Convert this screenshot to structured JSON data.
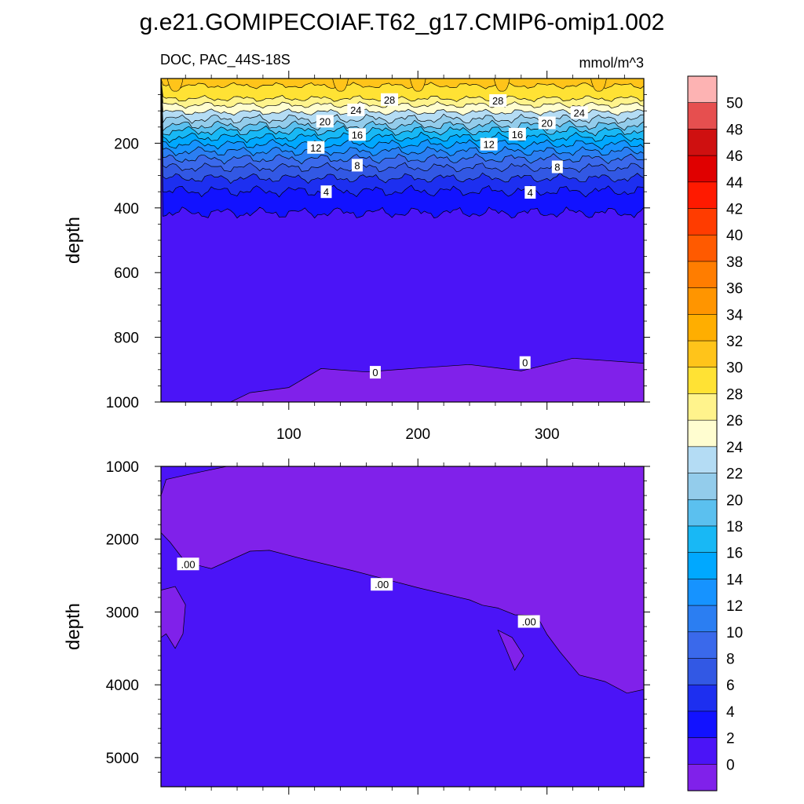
{
  "figure": {
    "title": "g.e21.GOMIPECOIAF.T62_g17.CMIP6-omip1.002",
    "left_subtitle": "DOC, PAC_44S-18S",
    "right_subtitle": "mmol/m^3"
  },
  "chart_data": [
    {
      "type": "heatmap",
      "name": "upper-panel",
      "ylabel": "depth",
      "x_range": [
        1,
        375
      ],
      "y_range": [
        0,
        1000
      ],
      "y_inverted": true,
      "x_ticks": [
        100,
        200,
        300
      ],
      "x_tick_labels": [
        "100",
        "200",
        "300"
      ],
      "y_ticks": [
        200,
        400,
        600,
        800,
        1000
      ],
      "y_tick_labels": [
        "200",
        "400",
        "600",
        "800",
        "1000"
      ],
      "bands": [
        {
          "level": 30,
          "depth": 22
        },
        {
          "level": 28,
          "depth": 62
        },
        {
          "level": 26,
          "depth": 82
        },
        {
          "level": 24,
          "depth": 104
        },
        {
          "level": 22,
          "depth": 125
        },
        {
          "level": 20,
          "depth": 145
        },
        {
          "level": 18,
          "depth": 162
        },
        {
          "level": 16,
          "depth": 182
        },
        {
          "level": 14,
          "depth": 203
        },
        {
          "level": 12,
          "depth": 225
        },
        {
          "level": 10,
          "depth": 248
        },
        {
          "level": 8,
          "depth": 275
        },
        {
          "level": 6,
          "depth": 308
        },
        {
          "level": 4,
          "depth": 348
        },
        {
          "level": 2,
          "depth": 415
        }
      ],
      "deep_zero_line": [
        {
          "x": 1,
          "depth": 1000
        },
        {
          "x": 55,
          "depth": 1000
        },
        {
          "x": 70,
          "depth": 970
        },
        {
          "x": 100,
          "depth": 950
        },
        {
          "x": 125,
          "depth": 900
        },
        {
          "x": 160,
          "depth": 910
        },
        {
          "x": 200,
          "depth": 900
        },
        {
          "x": 240,
          "depth": 880
        },
        {
          "x": 280,
          "depth": 900
        },
        {
          "x": 320,
          "depth": 870
        },
        {
          "x": 375,
          "depth": 880
        }
      ],
      "contour_labels": [
        {
          "text": "28",
          "x": 178,
          "depth": 65
        },
        {
          "text": "28",
          "x": 262,
          "depth": 68
        },
        {
          "text": "24",
          "x": 152,
          "depth": 97
        },
        {
          "text": "24",
          "x": 325,
          "depth": 105
        },
        {
          "text": "20",
          "x": 128,
          "depth": 132
        },
        {
          "text": "20",
          "x": 300,
          "depth": 137
        },
        {
          "text": "16",
          "x": 153,
          "depth": 173
        },
        {
          "text": "16",
          "x": 277,
          "depth": 172
        },
        {
          "text": "12",
          "x": 121,
          "depth": 213
        },
        {
          "text": "12",
          "x": 255,
          "depth": 203
        },
        {
          "text": "8",
          "x": 153,
          "depth": 268
        },
        {
          "text": "8",
          "x": 308,
          "depth": 273
        },
        {
          "text": "4",
          "x": 129,
          "depth": 350
        },
        {
          "text": "4",
          "x": 287,
          "depth": 352
        },
        {
          "text": "0",
          "x": 167,
          "depth": 908
        },
        {
          "text": "0",
          "x": 283,
          "depth": 878
        }
      ]
    },
    {
      "type": "heatmap",
      "name": "lower-panel",
      "ylabel": "depth",
      "x_range": [
        1,
        375
      ],
      "y_range": [
        1000,
        5400
      ],
      "y_inverted": true,
      "y_ticks": [
        1000,
        2000,
        3000,
        4000,
        5000
      ],
      "y_tick_labels": [
        "1000",
        "2000",
        "3000",
        "4000",
        "5000"
      ],
      "zero_boundary": [
        {
          "x": 1,
          "depth": 1900
        },
        {
          "x": 8,
          "depth": 2050
        },
        {
          "x": 20,
          "depth": 2300
        },
        {
          "x": 40,
          "depth": 2400
        },
        {
          "x": 70,
          "depth": 2180
        },
        {
          "x": 85,
          "depth": 2150
        },
        {
          "x": 110,
          "depth": 2250
        },
        {
          "x": 150,
          "depth": 2450
        },
        {
          "x": 200,
          "depth": 2650
        },
        {
          "x": 240,
          "depth": 2850
        },
        {
          "x": 250,
          "depth": 2920
        },
        {
          "x": 262,
          "depth": 2930
        },
        {
          "x": 275,
          "depth": 3050
        },
        {
          "x": 292,
          "depth": 3050
        },
        {
          "x": 300,
          "depth": 3300
        },
        {
          "x": 310,
          "depth": 3550
        },
        {
          "x": 325,
          "depth": 3850
        },
        {
          "x": 345,
          "depth": 3950
        },
        {
          "x": 362,
          "depth": 4100
        },
        {
          "x": 375,
          "depth": 4080
        }
      ],
      "shallow_patch": [
        {
          "x": 1,
          "depth": 1000
        },
        {
          "x": 52,
          "depth": 1000
        },
        {
          "x": 25,
          "depth": 1100
        },
        {
          "x": 5,
          "depth": 1180
        },
        {
          "x": 1,
          "depth": 1400
        }
      ],
      "side_patch": [
        {
          "x": 1,
          "depth": 2700
        },
        {
          "x": 12,
          "depth": 2650
        },
        {
          "x": 20,
          "depth": 2900
        },
        {
          "x": 18,
          "depth": 3300
        },
        {
          "x": 12,
          "depth": 3500
        },
        {
          "x": 5,
          "depth": 3300
        },
        {
          "x": 1,
          "depth": 3350
        }
      ],
      "pocket": [
        {
          "x": 262,
          "depth": 3250
        },
        {
          "x": 273,
          "depth": 3350
        },
        {
          "x": 282,
          "depth": 3600
        },
        {
          "x": 275,
          "depth": 3800
        },
        {
          "x": 268,
          "depth": 3500
        }
      ],
      "contour_labels": [
        {
          "text": ".00",
          "x": 22,
          "depth": 2340
        },
        {
          "text": ".00",
          "x": 172,
          "depth": 2620
        },
        {
          "text": ".00",
          "x": 286,
          "depth": 3130
        }
      ]
    }
  ],
  "colorbar": {
    "labels": [
      "50",
      "48",
      "46",
      "44",
      "42",
      "40",
      "38",
      "36",
      "34",
      "32",
      "30",
      "28",
      "26",
      "24",
      "22",
      "20",
      "18",
      "16",
      "14",
      "12",
      "10",
      "8",
      "6",
      "4",
      "2",
      "0"
    ],
    "colors_top_to_bottom": [
      "#fdb3b3",
      "#e64f4f",
      "#cf1010",
      "#e00000",
      "#ff1a00",
      "#ff3c00",
      "#ff5a00",
      "#ff7d00",
      "#ff9500",
      "#ffae00",
      "#ffc41a",
      "#ffe234",
      "#fff38c",
      "#fffdd0",
      "#b4dcf4",
      "#93cceb",
      "#5bc0ef",
      "#18b8f5",
      "#00a8ff",
      "#1693ff",
      "#2b7ef2",
      "#3a69eb",
      "#3258e4",
      "#1d2ff0",
      "#1212ff",
      "#4b14f7",
      "#8021ea"
    ]
  }
}
